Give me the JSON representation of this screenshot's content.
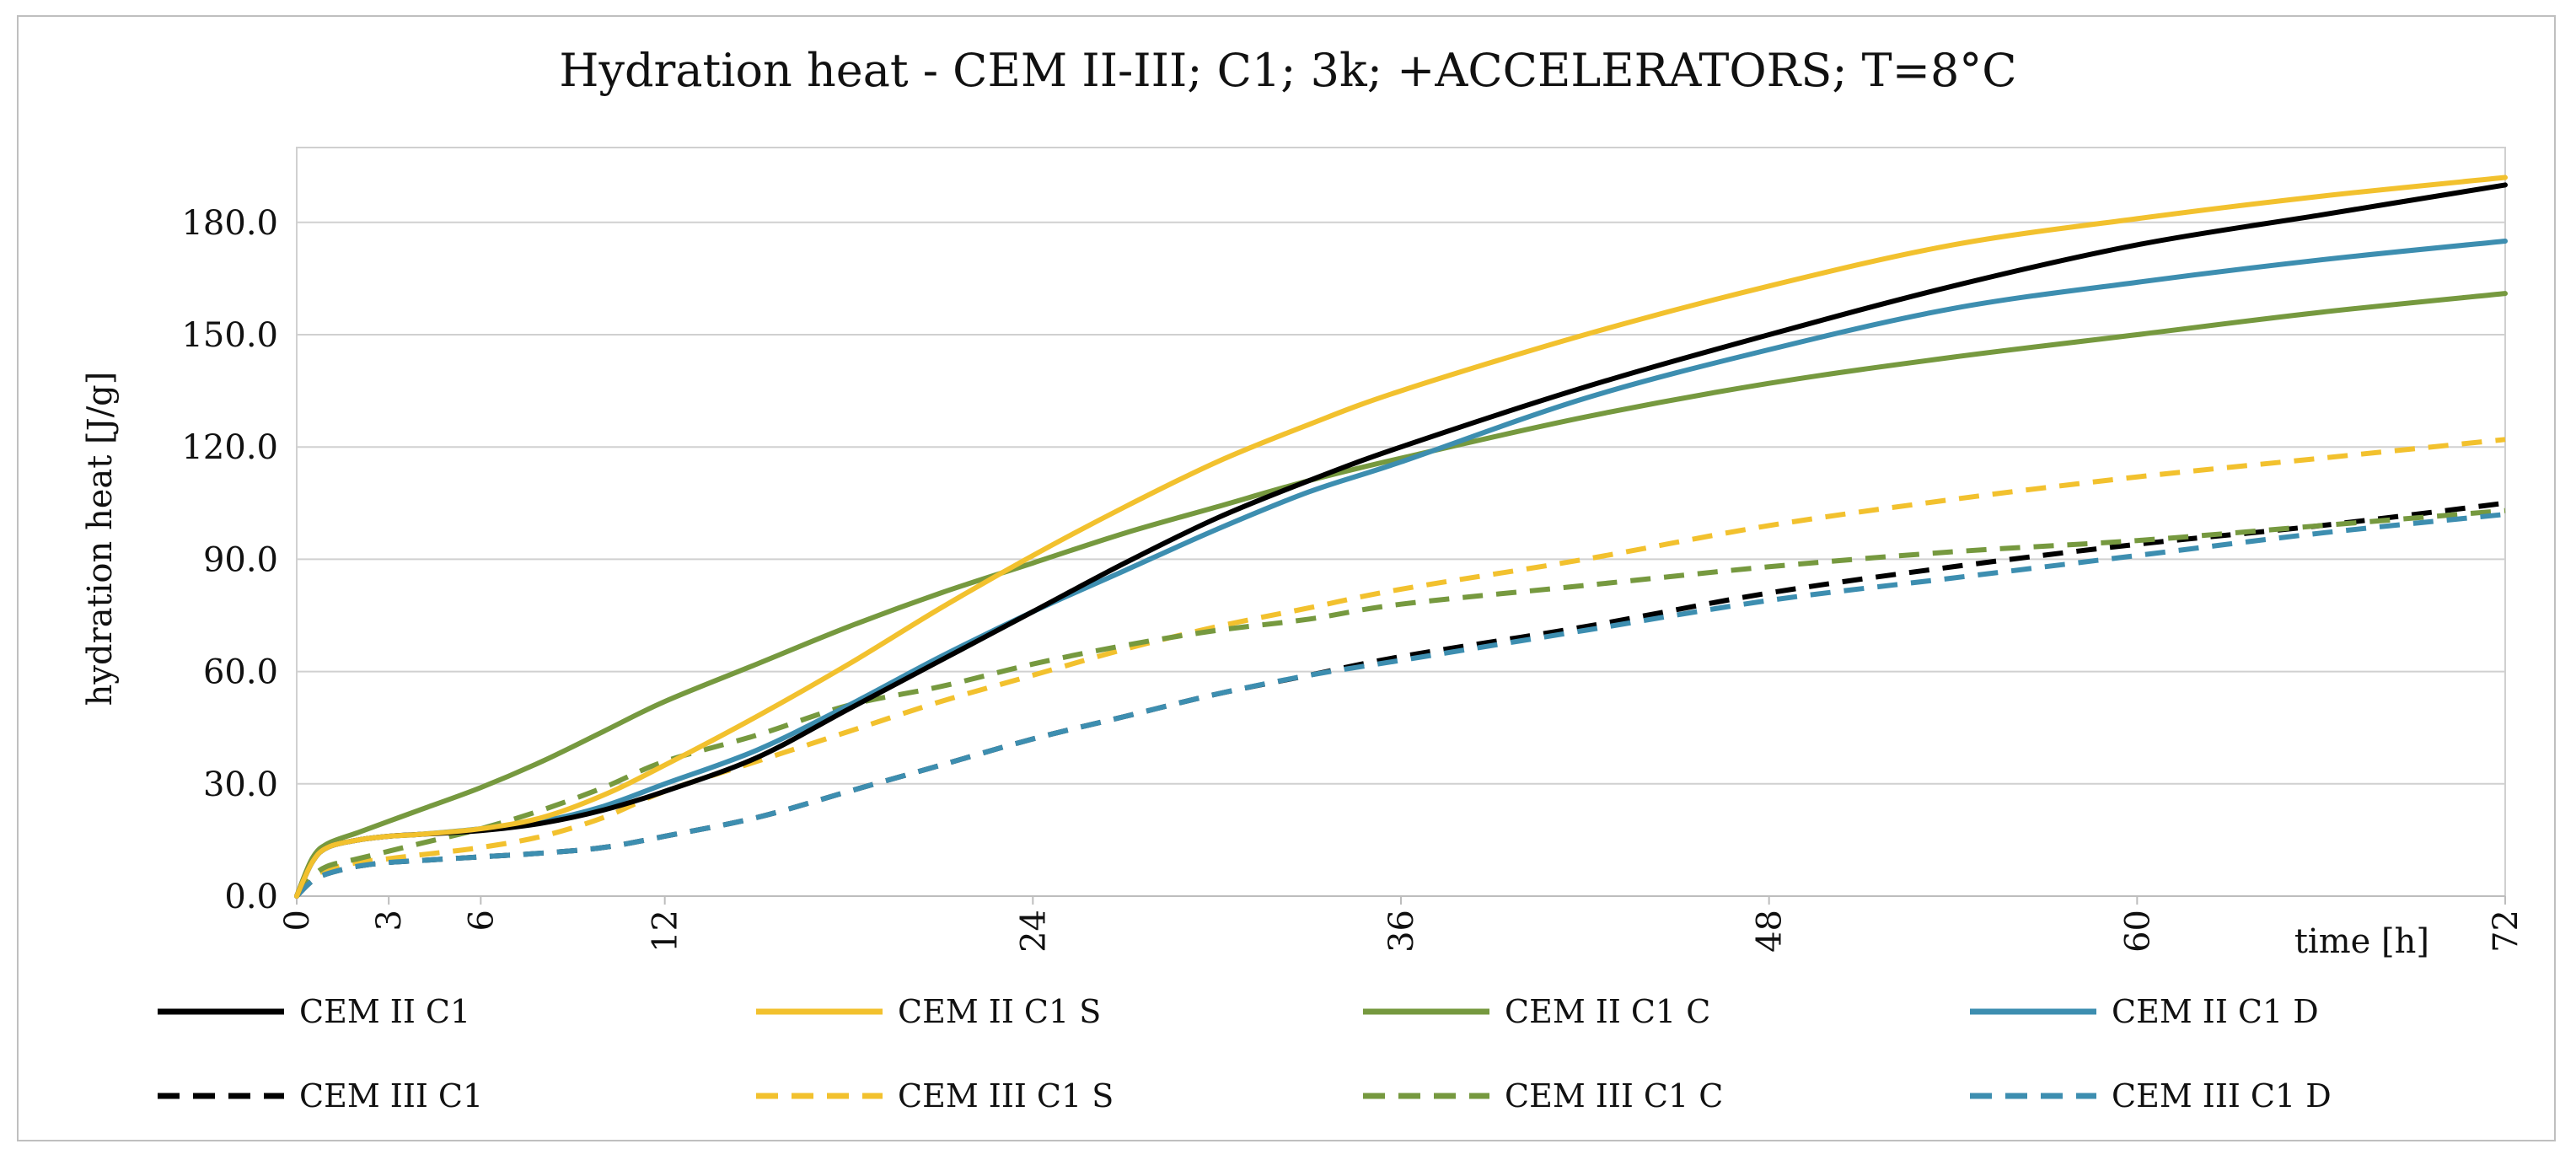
{
  "chart_data": {
    "type": "line",
    "title": "Hydration heat - CEM II-III; C1; 3k; +ACCELERATORS; T=8°C",
    "xlabel": "time [h]",
    "ylabel": "hydration heat [J/g]",
    "xlim": [
      0,
      72
    ],
    "ylim": [
      0,
      200
    ],
    "x_ticks": [
      0,
      3,
      6,
      12,
      24,
      36,
      48,
      60,
      72
    ],
    "x_tick_labels": [
      "0",
      "3",
      "6",
      "12",
      "24",
      "36",
      "48",
      "60",
      "72"
    ],
    "y_ticks": [
      0,
      30,
      60,
      90,
      120,
      150,
      180
    ],
    "y_tick_labels": [
      "0.0",
      "30.0",
      "60.0",
      "90.0",
      "120.0",
      "150.0",
      "180.0"
    ],
    "grid": "horizontal",
    "legend_position": "bottom",
    "x": [
      0,
      0.5,
      1,
      2,
      3,
      4,
      6,
      8,
      10,
      12,
      15,
      18,
      21,
      24,
      27,
      30,
      33,
      36,
      42,
      48,
      54,
      60,
      66,
      72
    ],
    "series": [
      {
        "name": "CEM II C1",
        "color": "#000000",
        "dash": "solid",
        "values": [
          0,
          9,
          13,
          15,
          16,
          16.5,
          17.5,
          19.5,
          23,
          28,
          37,
          50,
          63,
          76,
          89,
          101,
          111,
          120,
          136,
          150,
          163,
          174,
          182,
          190
        ]
      },
      {
        "name": "CEM II C1 S",
        "color": "#f2c12e",
        "dash": "solid",
        "values": [
          0,
          9,
          13,
          15,
          16,
          16.5,
          18,
          21,
          27,
          35,
          48,
          62,
          77,
          91,
          104,
          116,
          126,
          135,
          150,
          163,
          174,
          181,
          187,
          192
        ]
      },
      {
        "name": "CEM II C1 C",
        "color": "#76993f",
        "dash": "solid",
        "values": [
          0,
          10,
          14,
          17,
          20,
          23,
          29,
          36,
          44,
          52,
          62,
          72,
          81,
          89,
          97,
          104,
          111,
          117,
          128,
          137,
          144,
          150,
          156,
          161
        ]
      },
      {
        "name": "CEM II C1 D",
        "color": "#3d8eb0",
        "dash": "solid",
        "values": [
          0,
          9,
          13,
          15,
          16,
          16.5,
          18,
          20,
          24,
          30,
          39,
          51,
          64,
          76,
          87,
          98,
          108,
          116,
          133,
          146,
          157,
          164,
          170,
          175
        ]
      },
      {
        "name": "CEM III C1",
        "color": "#000000",
        "dash": "dashed",
        "values": [
          0,
          4,
          6,
          8,
          9,
          9.5,
          10.5,
          11.5,
          13,
          16,
          21,
          28,
          35,
          42,
          48,
          54,
          59,
          64,
          72,
          81,
          88,
          94,
          99,
          105
        ]
      },
      {
        "name": "CEM III C1 S",
        "color": "#f2c12e",
        "dash": "dashed",
        "values": [
          0,
          5,
          7,
          9,
          10,
          11,
          13,
          16,
          21,
          28,
          36,
          44,
          52,
          59,
          66,
          72,
          77,
          82,
          90,
          99,
          106,
          112,
          117,
          122
        ]
      },
      {
        "name": "CEM III C1 C",
        "color": "#76993f",
        "dash": "dashed",
        "values": [
          0,
          5,
          8,
          10,
          12,
          14,
          18,
          23,
          29,
          36,
          43,
          51,
          56,
          62,
          67,
          71,
          74,
          78,
          83,
          88,
          92,
          95,
          99,
          103
        ]
      },
      {
        "name": "CEM III C1 D",
        "color": "#3d8eb0",
        "dash": "dashed",
        "values": [
          0,
          4,
          6,
          8,
          9,
          9.5,
          10.5,
          11.5,
          13,
          16,
          21,
          28,
          35,
          42,
          48,
          54,
          59,
          63,
          71,
          79,
          85,
          91,
          97,
          102
        ]
      }
    ]
  }
}
